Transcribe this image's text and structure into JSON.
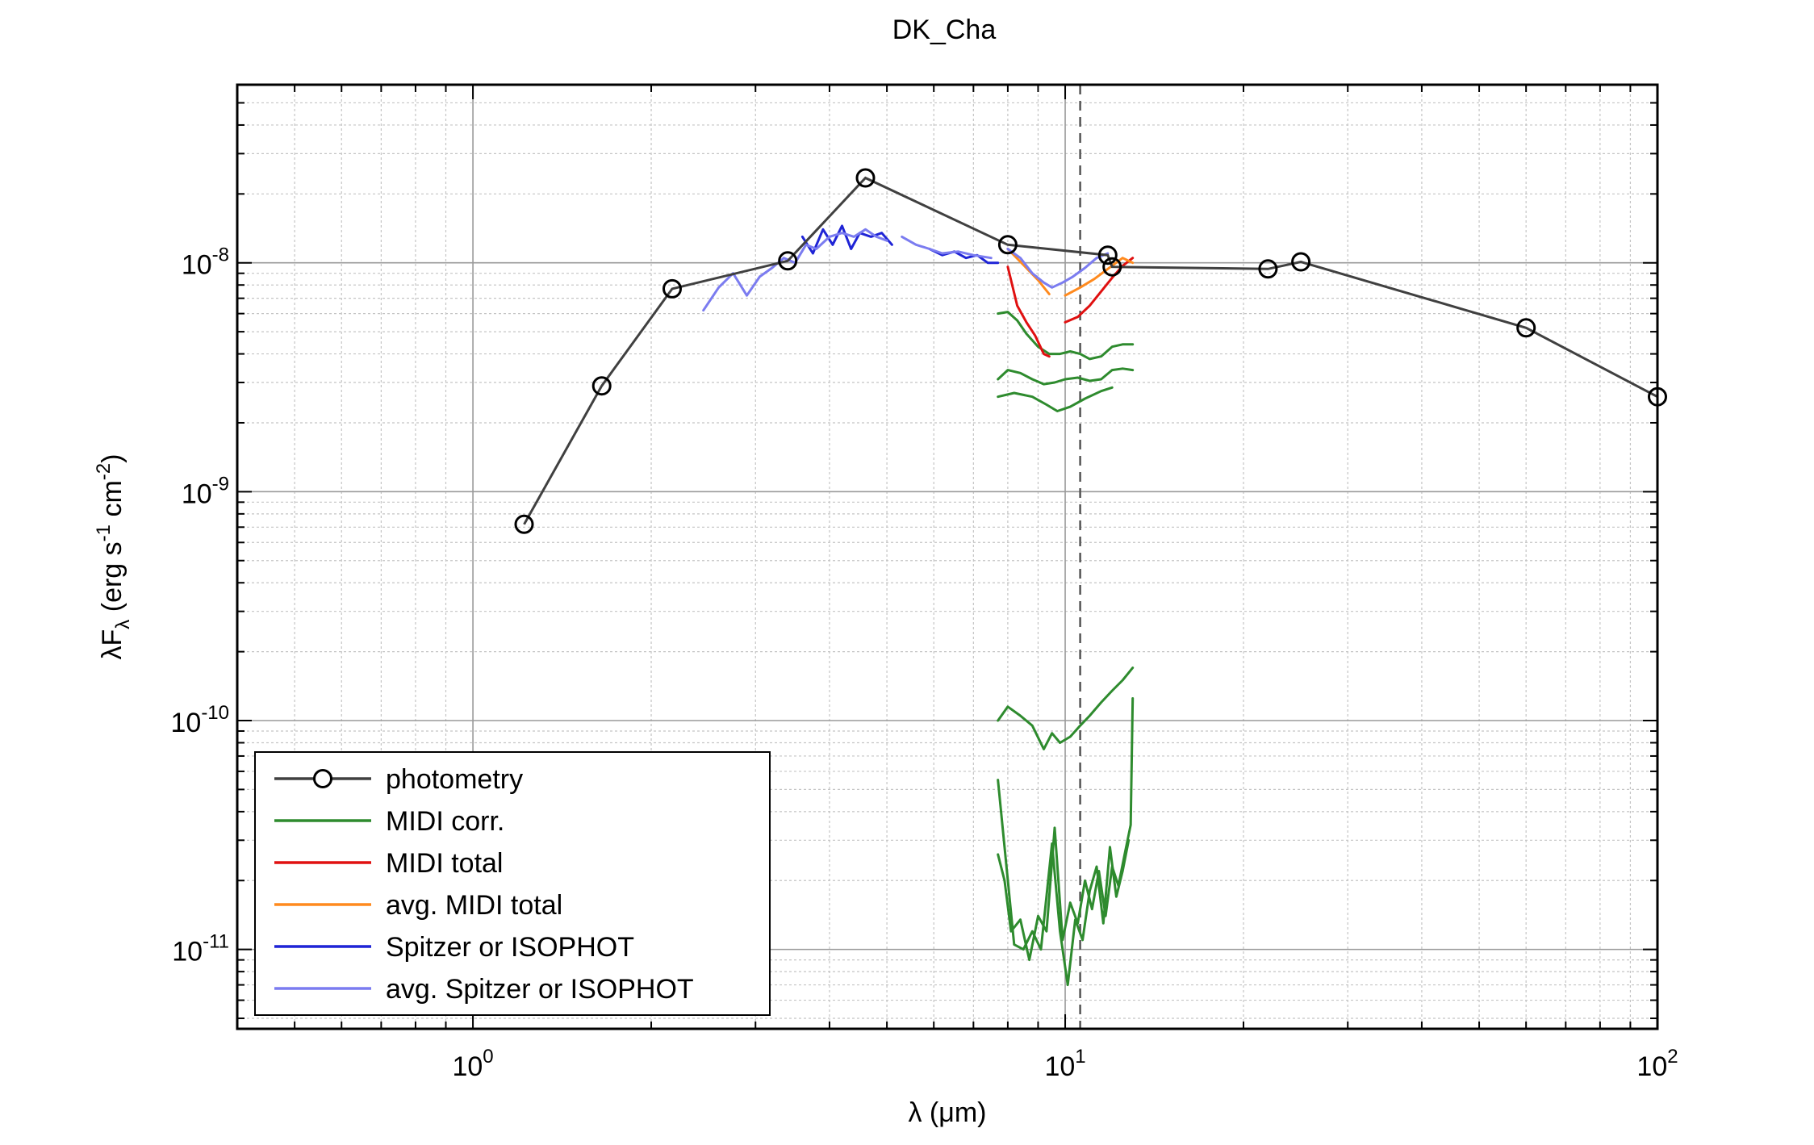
{
  "chart_data": {
    "type": "line",
    "title": "DK_Cha",
    "xlabel": {
      "base": "λ (",
      "mu": "μ",
      "tail": "m)"
    },
    "ylabel": {
      "pre": "λF",
      "sub": "λ",
      "mid": " (erg s",
      "sup1": "-1",
      "mid2": " cm",
      "sup2": "-2",
      "end": ")"
    },
    "xscale": "log",
    "yscale": "log",
    "xlim": [
      0.4,
      100
    ],
    "ylim": [
      4.5e-12,
      6e-08
    ],
    "grid": true,
    "xticks": [
      {
        "value": 1,
        "base": "10",
        "exp": "0"
      },
      {
        "value": 10,
        "base": "10",
        "exp": "1"
      },
      {
        "value": 100,
        "base": "10",
        "exp": "2"
      }
    ],
    "yticks": [
      {
        "value": 1e-11,
        "base": "10",
        "exp": "-11"
      },
      {
        "value": 1e-10,
        "base": "10",
        "exp": "-10"
      },
      {
        "value": 1e-09,
        "base": "10",
        "exp": "-9"
      },
      {
        "value": 1e-08,
        "base": "10",
        "exp": "-8"
      }
    ],
    "vline": {
      "x": 10.6,
      "color": "#555555"
    },
    "legend": {
      "position": "bottom-left"
    },
    "series": [
      {
        "name": "photometry",
        "color": "#404040",
        "marker": "circle",
        "points": [
          [
            1.22,
            7.2e-10
          ],
          [
            1.65,
            2.9e-09
          ],
          [
            2.17,
            7.7e-09
          ],
          [
            3.4,
            1.02e-08
          ],
          [
            4.6,
            2.35e-08
          ],
          [
            8.0,
            1.2e-08
          ],
          [
            11.8,
            1.08e-08
          ],
          [
            12.0,
            9.6e-09
          ],
          [
            22.0,
            9.4e-09
          ],
          [
            25.0,
            1.01e-08
          ],
          [
            60.0,
            5.2e-09
          ],
          [
            100.0,
            2.6e-09
          ]
        ]
      },
      {
        "name": "MIDI corr.",
        "color": "#2e8b2e",
        "lines": [
          [
            [
              7.7,
              6e-09
            ],
            [
              8.0,
              6.1e-09
            ],
            [
              8.3,
              5.6e-09
            ],
            [
              8.6,
              4.9e-09
            ],
            [
              9.0,
              4.3e-09
            ],
            [
              9.4,
              4e-09
            ],
            [
              9.8,
              4e-09
            ],
            [
              10.2,
              4.1e-09
            ],
            [
              10.6,
              4e-09
            ],
            [
              11.0,
              3.8e-09
            ],
            [
              11.5,
              3.9e-09
            ],
            [
              12.0,
              4.3e-09
            ],
            [
              12.5,
              4.4e-09
            ],
            [
              13.0,
              4.4e-09
            ]
          ],
          [
            [
              7.7,
              3.1e-09
            ],
            [
              8.0,
              3.4e-09
            ],
            [
              8.4,
              3.3e-09
            ],
            [
              8.8,
              3.1e-09
            ],
            [
              9.2,
              2.95e-09
            ],
            [
              9.6,
              3e-09
            ],
            [
              10.0,
              3.1e-09
            ],
            [
              10.5,
              3.15e-09
            ],
            [
              11.0,
              3.05e-09
            ],
            [
              11.5,
              3.1e-09
            ],
            [
              12.0,
              3.4e-09
            ],
            [
              12.5,
              3.45e-09
            ],
            [
              13.0,
              3.4e-09
            ]
          ],
          [
            [
              7.7,
              2.6e-09
            ],
            [
              8.2,
              2.7e-09
            ],
            [
              8.8,
              2.6e-09
            ],
            [
              9.3,
              2.4e-09
            ],
            [
              9.7,
              2.25e-09
            ],
            [
              10.2,
              2.35e-09
            ],
            [
              10.8,
              2.55e-09
            ],
            [
              11.5,
              2.75e-09
            ],
            [
              12.0,
              2.85e-09
            ]
          ],
          [
            [
              7.7,
              1e-10
            ],
            [
              8.0,
              1.15e-10
            ],
            [
              8.4,
              1.05e-10
            ],
            [
              8.8,
              9.5e-11
            ],
            [
              9.2,
              7.5e-11
            ],
            [
              9.5,
              8.8e-11
            ],
            [
              9.8,
              8e-11
            ],
            [
              10.2,
              8.5e-11
            ],
            [
              10.6,
              9.5e-11
            ],
            [
              11.0,
              1.05e-10
            ],
            [
              11.5,
              1.2e-10
            ],
            [
              12.0,
              1.35e-10
            ],
            [
              12.5,
              1.5e-10
            ],
            [
              13.0,
              1.7e-10
            ]
          ],
          [
            [
              7.7,
              2.6e-11
            ],
            [
              7.9,
              2e-11
            ],
            [
              8.1,
              1.2e-11
            ],
            [
              8.4,
              1.35e-11
            ],
            [
              8.7,
              9e-12
            ],
            [
              9.0,
              1.4e-11
            ],
            [
              9.3,
              1.2e-11
            ],
            [
              9.6,
              3.4e-11
            ],
            [
              9.9,
              1.1e-11
            ],
            [
              10.2,
              1.6e-11
            ],
            [
              10.5,
              1.3e-11
            ],
            [
              10.8,
              2e-11
            ],
            [
              11.1,
              1.5e-11
            ],
            [
              11.4,
              2.2e-11
            ],
            [
              11.7,
              1.4e-11
            ],
            [
              12.0,
              2.3e-11
            ],
            [
              12.3,
              1.9e-11
            ],
            [
              12.6,
              2.6e-11
            ],
            [
              12.9,
              3.5e-11
            ],
            [
              13.0,
              1.25e-10
            ]
          ],
          [
            [
              7.7,
              5.5e-11
            ],
            [
              7.9,
              2.8e-11
            ],
            [
              8.2,
              1.05e-11
            ],
            [
              8.5,
              1e-11
            ],
            [
              8.8,
              1.2e-11
            ],
            [
              9.1,
              1e-11
            ],
            [
              9.5,
              2.9e-11
            ],
            [
              9.8,
              1.2e-11
            ],
            [
              10.1,
              7e-12
            ],
            [
              10.4,
              1.35e-11
            ],
            [
              10.7,
              1.1e-11
            ],
            [
              11.0,
              1.8e-11
            ],
            [
              11.3,
              2.3e-11
            ],
            [
              11.6,
              1.3e-11
            ],
            [
              11.9,
              2.8e-11
            ],
            [
              12.2,
              1.7e-11
            ],
            [
              12.5,
              2.2e-11
            ],
            [
              12.8,
              3e-11
            ]
          ]
        ]
      },
      {
        "name": "MIDI total",
        "color": "#e01010",
        "lines": [
          [
            [
              8.0,
              9.6e-09
            ],
            [
              8.3,
              6.5e-09
            ],
            [
              8.6,
              5.5e-09
            ],
            [
              8.9,
              4.8e-09
            ],
            [
              9.2,
              4e-09
            ],
            [
              9.4,
              3.9e-09
            ]
          ],
          [
            [
              10.0,
              5.5e-09
            ],
            [
              10.5,
              5.8e-09
            ],
            [
              11.0,
              6.5e-09
            ],
            [
              11.5,
              7.5e-09
            ],
            [
              12.0,
              8.6e-09
            ],
            [
              12.5,
              9.7e-09
            ],
            [
              13.0,
              1.05e-08
            ]
          ]
        ]
      },
      {
        "name": "avg. MIDI total",
        "color": "#ff8a1e",
        "lines": [
          [
            [
              8.0,
              1.15e-08
            ],
            [
              8.5,
              9.8e-09
            ],
            [
              9.0,
              8.4e-09
            ],
            [
              9.4,
              7.3e-09
            ]
          ],
          [
            [
              10.0,
              7.2e-09
            ],
            [
              10.6,
              7.8e-09
            ],
            [
              11.2,
              8.5e-09
            ],
            [
              11.8,
              9.4e-09
            ],
            [
              12.5,
              1.05e-08
            ],
            [
              13.0,
              1e-08
            ]
          ]
        ]
      },
      {
        "name": "Spitzer or ISOPHOT",
        "color": "#1f24d6",
        "lines": [
          [
            [
              3.6,
              1.3e-08
            ],
            [
              3.75,
              1.1e-08
            ],
            [
              3.9,
              1.4e-08
            ],
            [
              4.05,
              1.2e-08
            ],
            [
              4.2,
              1.45e-08
            ],
            [
              4.35,
              1.15e-08
            ],
            [
              4.5,
              1.35e-08
            ],
            [
              4.7,
              1.3e-08
            ],
            [
              4.9,
              1.35e-08
            ],
            [
              5.1,
              1.2e-08
            ]
          ],
          [
            [
              5.9,
              1.15e-08
            ],
            [
              6.2,
              1.08e-08
            ],
            [
              6.5,
              1.12e-08
            ],
            [
              6.8,
              1.05e-08
            ],
            [
              7.1,
              1.08e-08
            ],
            [
              7.4,
              1e-08
            ],
            [
              7.7,
              1e-08
            ]
          ]
        ]
      },
      {
        "name": "avg. Spitzer or ISOPHOT",
        "color": "#7b7cf0",
        "lines": [
          [
            [
              2.45,
              6.2e-09
            ],
            [
              2.6,
              7.8e-09
            ],
            [
              2.75,
              9e-09
            ],
            [
              2.9,
              7.2e-09
            ],
            [
              3.05,
              8.7e-09
            ],
            [
              3.2,
              9.5e-09
            ],
            [
              3.35,
              1.05e-08
            ],
            [
              3.5,
              1e-08
            ],
            [
              3.65,
              1.2e-08
            ],
            [
              3.8,
              1.15e-08
            ],
            [
              4.0,
              1.3e-08
            ],
            [
              4.2,
              1.35e-08
            ],
            [
              4.4,
              1.3e-08
            ],
            [
              4.6,
              1.4e-08
            ],
            [
              4.8,
              1.3e-08
            ],
            [
              5.0,
              1.25e-08
            ]
          ],
          [
            [
              5.3,
              1.3e-08
            ],
            [
              5.6,
              1.2e-08
            ],
            [
              5.9,
              1.15e-08
            ],
            [
              6.2,
              1.1e-08
            ],
            [
              6.6,
              1.12e-08
            ],
            [
              7.0,
              1.08e-08
            ],
            [
              7.5,
              1.05e-08
            ]
          ],
          [
            [
              8.0,
              1.15e-08
            ],
            [
              8.4,
              1.05e-08
            ],
            [
              8.8,
              9e-09
            ],
            [
              9.2,
              8.2e-09
            ],
            [
              9.5,
              7.8e-09
            ],
            [
              9.9,
              8.2e-09
            ],
            [
              10.3,
              8.7e-09
            ],
            [
              10.8,
              9.5e-09
            ],
            [
              11.3,
              1.05e-08
            ],
            [
              11.8,
              1.1e-08
            ]
          ]
        ]
      }
    ]
  }
}
